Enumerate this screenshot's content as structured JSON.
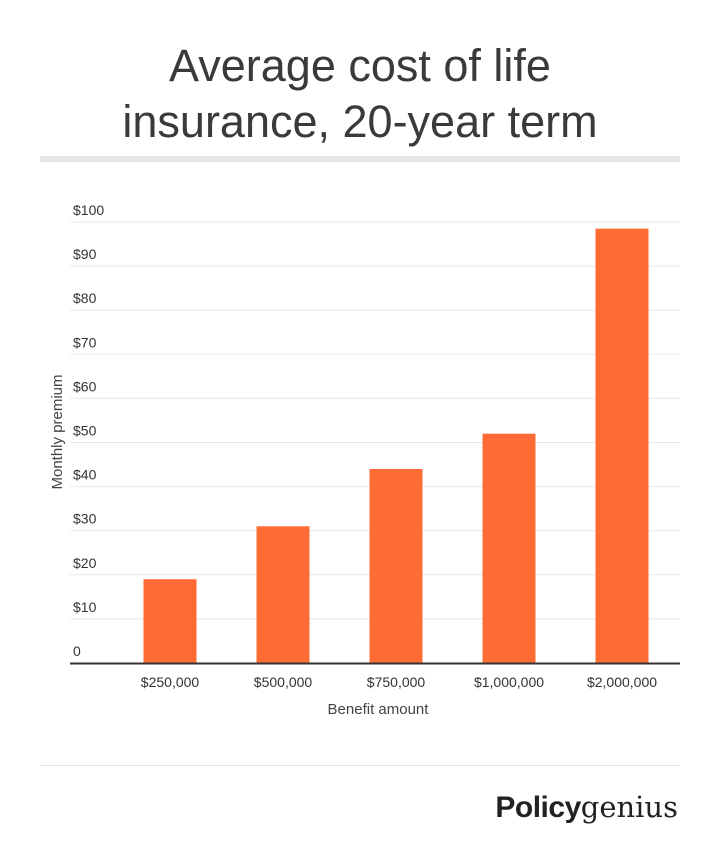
{
  "header": {
    "title_line1": "Average cost of life",
    "title_line2": "insurance, 20-year term"
  },
  "brand": {
    "bold": "Policy",
    "light": "genius"
  },
  "colors": {
    "bar": "#ff6b35",
    "grid": "#e8e8e8",
    "axis": "#333333"
  },
  "chart_data": {
    "type": "bar",
    "title": "Average cost of life insurance, 20-year term",
    "categories": [
      "$250,000",
      "$500,000",
      "$750,000",
      "$1,000,000",
      "$2,000,000"
    ],
    "values": [
      19,
      31,
      44,
      52,
      98.5
    ],
    "xlabel": "Benefit amount",
    "ylabel": "Monthly premium",
    "ylim": [
      0,
      100
    ],
    "yticks": [
      0,
      10,
      20,
      30,
      40,
      50,
      60,
      70,
      80,
      90,
      100
    ],
    "ytick_labels": [
      "0",
      "$10",
      "$20",
      "$30",
      "$40",
      "$50",
      "$60",
      "$70",
      "$80",
      "$90",
      "$100"
    ],
    "grid": true,
    "legend": "none"
  }
}
